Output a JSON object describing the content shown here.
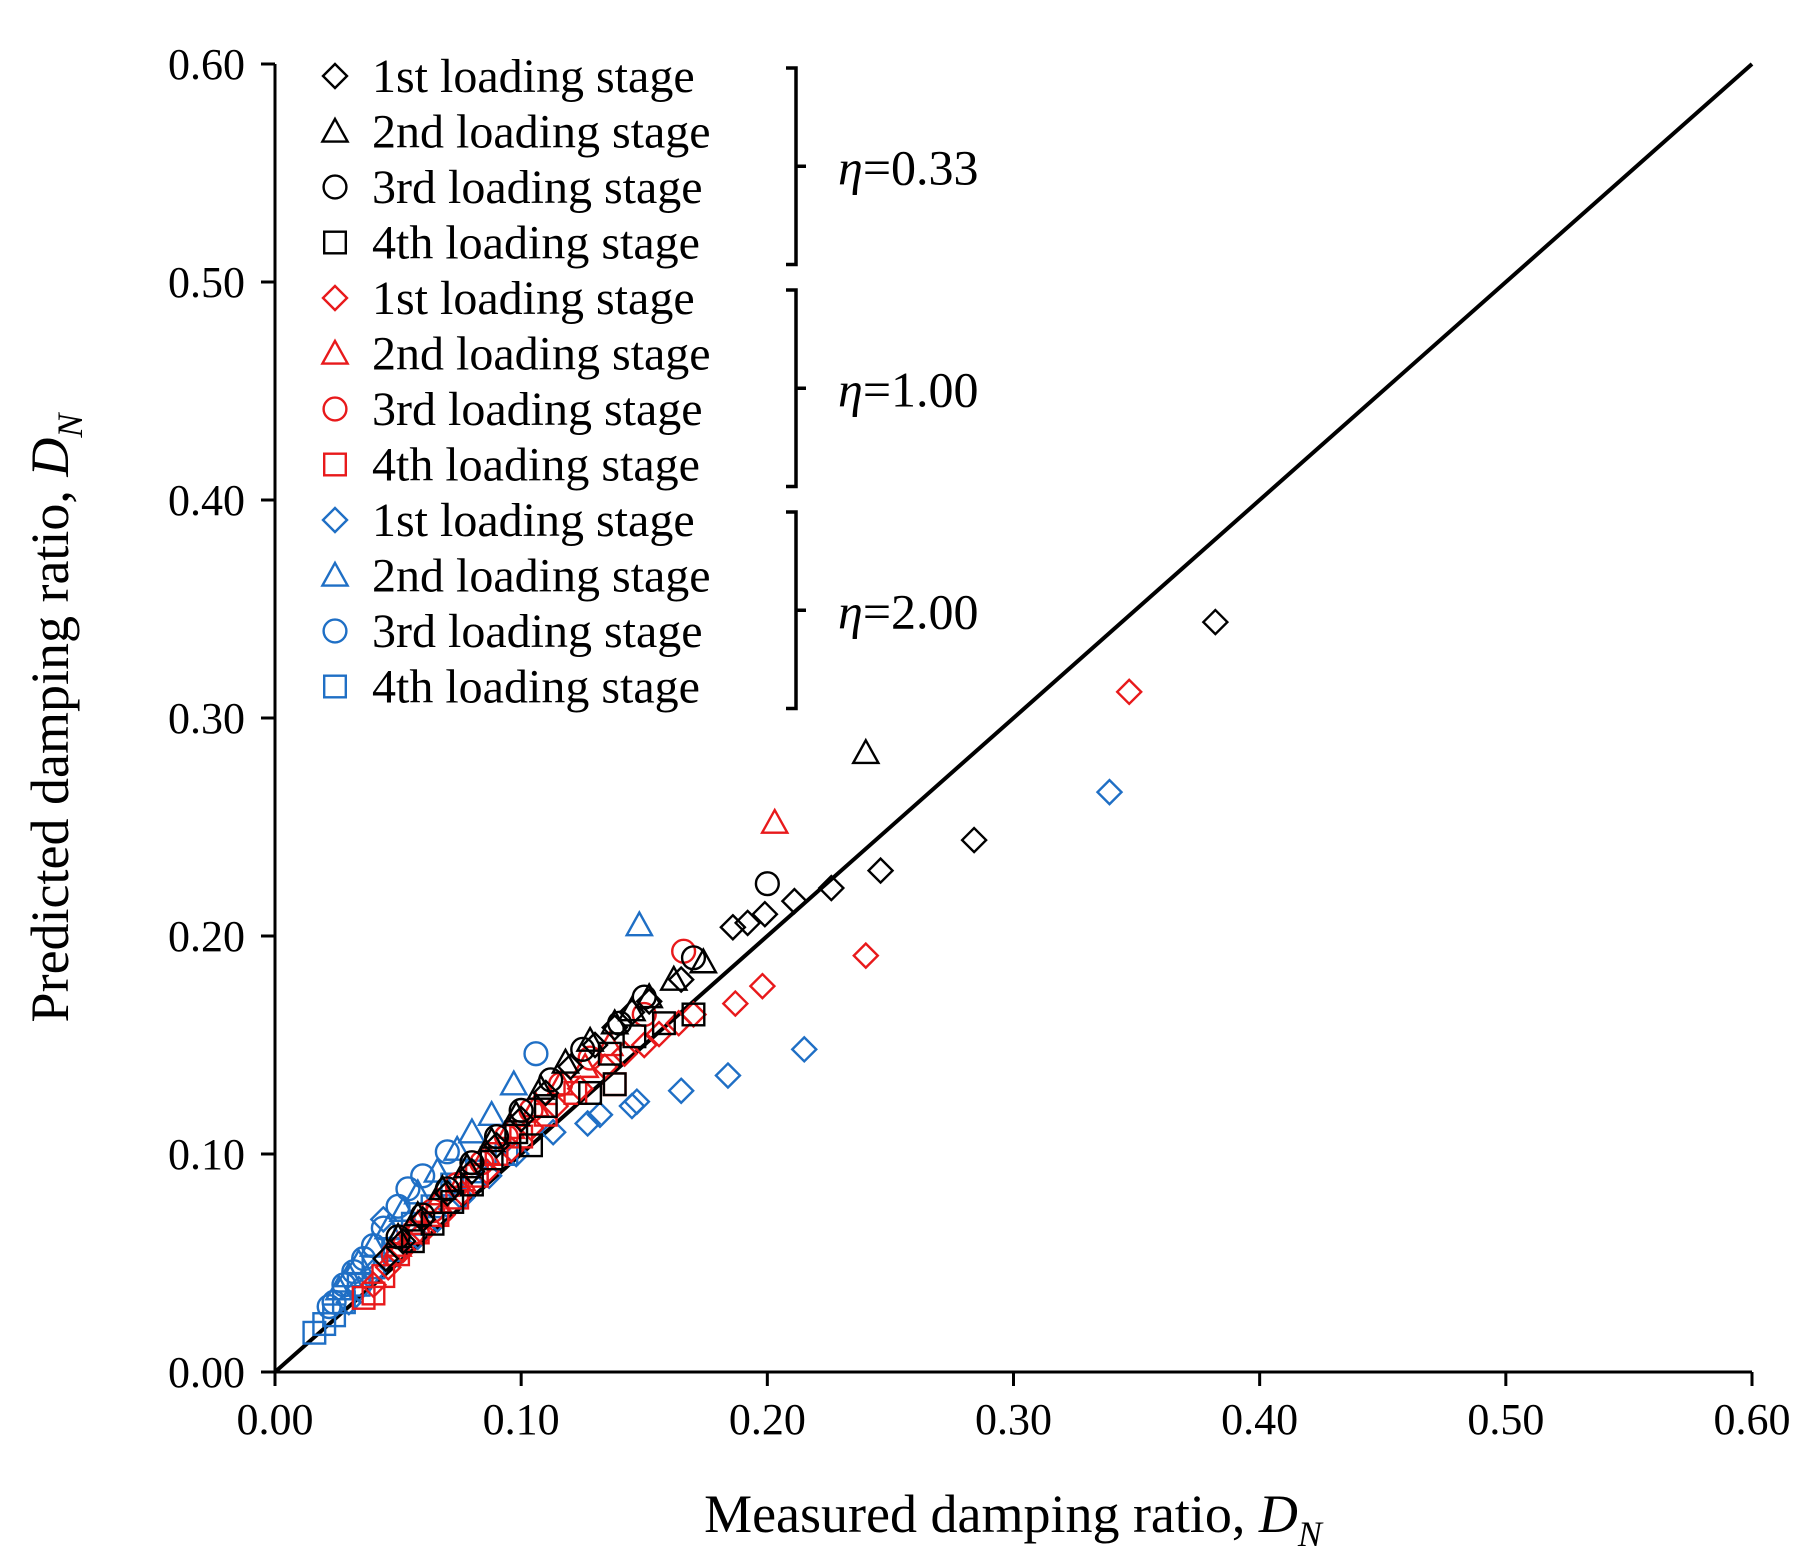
{
  "chart_data": {
    "type": "scatter",
    "title": "",
    "xlabel": "Measured damping ratio, ",
    "xlabel_var": "D",
    "xlabel_sub": "N",
    "ylabel": "Predicted damping ratio, ",
    "ylabel_var": "D",
    "ylabel_sub": "N",
    "xlim": [
      0,
      0.6
    ],
    "ylim": [
      0,
      0.6
    ],
    "x_ticks": [
      "0.00",
      "0.10",
      "0.20",
      "0.30",
      "0.40",
      "0.50",
      "0.60"
    ],
    "y_ticks": [
      "0.00",
      "0.10",
      "0.20",
      "0.30",
      "0.40",
      "0.50",
      "0.60"
    ],
    "reference_line": {
      "name": "1:1 line",
      "from": [
        0,
        0
      ],
      "to": [
        0.6,
        0.6
      ],
      "color": "#000000"
    },
    "legend_position": "top-left",
    "groups": [
      {
        "label_var": "η",
        "label_value": "=0.33",
        "color": "#000000"
      },
      {
        "label_var": "η",
        "label_value": "=1.00",
        "color": "#e8191b"
      },
      {
        "label_var": "η",
        "label_value": "=2.00",
        "color": "#1f6fc5"
      }
    ],
    "series": [
      {
        "name": "1st loading stage",
        "group": 0,
        "marker": "diamond",
        "color": "#000000",
        "points": [
          [
            0.382,
            0.344
          ],
          [
            0.284,
            0.244
          ],
          [
            0.246,
            0.23
          ],
          [
            0.226,
            0.222
          ],
          [
            0.211,
            0.216
          ],
          [
            0.199,
            0.21
          ],
          [
            0.192,
            0.206
          ],
          [
            0.186,
            0.204
          ],
          [
            0.165,
            0.18
          ],
          [
            0.152,
            0.17
          ],
          [
            0.145,
            0.165
          ],
          [
            0.138,
            0.158
          ],
          [
            0.13,
            0.15
          ],
          [
            0.12,
            0.14
          ],
          [
            0.11,
            0.128
          ],
          [
            0.1,
            0.116
          ],
          [
            0.09,
            0.104
          ],
          [
            0.08,
            0.092
          ],
          [
            0.07,
            0.082
          ],
          [
            0.06,
            0.07
          ],
          [
            0.052,
            0.06
          ],
          [
            0.045,
            0.052
          ]
        ]
      },
      {
        "name": "2nd loading stage",
        "group": 0,
        "marker": "triangle",
        "color": "#000000",
        "points": [
          [
            0.24,
            0.284
          ],
          [
            0.174,
            0.188
          ],
          [
            0.162,
            0.18
          ],
          [
            0.152,
            0.172
          ],
          [
            0.145,
            0.166
          ],
          [
            0.138,
            0.16
          ],
          [
            0.128,
            0.152
          ],
          [
            0.118,
            0.142
          ],
          [
            0.108,
            0.13
          ],
          [
            0.098,
            0.118
          ],
          [
            0.088,
            0.106
          ],
          [
            0.078,
            0.094
          ],
          [
            0.068,
            0.084
          ],
          [
            0.058,
            0.072
          ],
          [
            0.05,
            0.062
          ]
        ]
      },
      {
        "name": "3rd loading stage",
        "group": 0,
        "marker": "circle",
        "color": "#000000",
        "points": [
          [
            0.2,
            0.224
          ],
          [
            0.17,
            0.19
          ],
          [
            0.15,
            0.172
          ],
          [
            0.14,
            0.16
          ],
          [
            0.125,
            0.148
          ],
          [
            0.112,
            0.134
          ],
          [
            0.1,
            0.12
          ],
          [
            0.09,
            0.108
          ],
          [
            0.08,
            0.096
          ],
          [
            0.07,
            0.084
          ],
          [
            0.06,
            0.072
          ],
          [
            0.05,
            0.062
          ]
        ]
      },
      {
        "name": "4th loading stage",
        "group": 0,
        "marker": "square",
        "color": "#000000",
        "points": [
          [
            0.17,
            0.164
          ],
          [
            0.158,
            0.16
          ],
          [
            0.146,
            0.154
          ],
          [
            0.136,
            0.146
          ],
          [
            0.138,
            0.132
          ],
          [
            0.128,
            0.128
          ],
          [
            0.11,
            0.122
          ],
          [
            0.098,
            0.11
          ],
          [
            0.104,
            0.104
          ],
          [
            0.088,
            0.098
          ],
          [
            0.08,
            0.086
          ],
          [
            0.072,
            0.078
          ],
          [
            0.064,
            0.068
          ],
          [
            0.056,
            0.06
          ]
        ]
      },
      {
        "name": "1st loading stage",
        "group": 1,
        "marker": "diamond",
        "color": "#e8191b",
        "points": [
          [
            0.347,
            0.312
          ],
          [
            0.24,
            0.191
          ],
          [
            0.198,
            0.177
          ],
          [
            0.187,
            0.169
          ],
          [
            0.17,
            0.164
          ],
          [
            0.164,
            0.16
          ],
          [
            0.156,
            0.155
          ],
          [
            0.15,
            0.15
          ],
          [
            0.142,
            0.146
          ],
          [
            0.134,
            0.14
          ],
          [
            0.124,
            0.13
          ],
          [
            0.114,
            0.122
          ],
          [
            0.104,
            0.112
          ],
          [
            0.096,
            0.102
          ],
          [
            0.086,
            0.092
          ],
          [
            0.076,
            0.082
          ],
          [
            0.068,
            0.072
          ],
          [
            0.06,
            0.064
          ],
          [
            0.052,
            0.056
          ],
          [
            0.046,
            0.048
          ],
          [
            0.04,
            0.04
          ]
        ]
      },
      {
        "name": "2nd loading stage",
        "group": 1,
        "marker": "triangle",
        "color": "#e8191b",
        "points": [
          [
            0.203,
            0.252
          ],
          [
            0.136,
            0.15
          ],
          [
            0.126,
            0.14
          ],
          [
            0.116,
            0.132
          ],
          [
            0.106,
            0.122
          ],
          [
            0.096,
            0.112
          ],
          [
            0.086,
            0.1
          ],
          [
            0.076,
            0.088
          ],
          [
            0.066,
            0.078
          ],
          [
            0.058,
            0.068
          ],
          [
            0.05,
            0.058
          ]
        ]
      },
      {
        "name": "3rd loading stage",
        "group": 1,
        "marker": "circle",
        "color": "#e8191b",
        "points": [
          [
            0.166,
            0.193
          ],
          [
            0.15,
            0.164
          ],
          [
            0.128,
            0.144
          ],
          [
            0.116,
            0.132
          ],
          [
            0.104,
            0.12
          ],
          [
            0.094,
            0.108
          ],
          [
            0.084,
            0.096
          ],
          [
            0.074,
            0.086
          ],
          [
            0.064,
            0.074
          ],
          [
            0.056,
            0.064
          ],
          [
            0.048,
            0.054
          ]
        ]
      },
      {
        "name": "4th loading stage",
        "group": 1,
        "marker": "square",
        "color": "#e8191b",
        "points": [
          [
            0.138,
            0.132
          ],
          [
            0.122,
            0.128
          ],
          [
            0.11,
            0.118
          ],
          [
            0.1,
            0.108
          ],
          [
            0.09,
            0.1
          ],
          [
            0.082,
            0.09
          ],
          [
            0.074,
            0.08
          ],
          [
            0.066,
            0.072
          ],
          [
            0.058,
            0.064
          ],
          [
            0.05,
            0.054
          ],
          [
            0.044,
            0.044
          ],
          [
            0.04,
            0.036
          ],
          [
            0.036,
            0.034
          ]
        ]
      },
      {
        "name": "1st loading stage",
        "group": 2,
        "marker": "diamond",
        "color": "#1f6fc5",
        "points": [
          [
            0.339,
            0.266
          ],
          [
            0.215,
            0.148
          ],
          [
            0.184,
            0.136
          ],
          [
            0.165,
            0.129
          ],
          [
            0.147,
            0.124
          ],
          [
            0.145,
            0.122
          ],
          [
            0.132,
            0.118
          ],
          [
            0.127,
            0.114
          ],
          [
            0.113,
            0.11
          ],
          [
            0.098,
            0.1
          ],
          [
            0.087,
            0.09
          ],
          [
            0.076,
            0.08
          ],
          [
            0.066,
            0.07
          ],
          [
            0.058,
            0.062
          ],
          [
            0.05,
            0.054
          ],
          [
            0.044,
            0.07
          ],
          [
            0.04,
            0.046
          ],
          [
            0.034,
            0.038
          ],
          [
            0.03,
            0.032
          ]
        ]
      },
      {
        "name": "2nd loading stage",
        "group": 2,
        "marker": "triangle",
        "color": "#1f6fc5",
        "points": [
          [
            0.148,
            0.205
          ],
          [
            0.097,
            0.132
          ],
          [
            0.088,
            0.118
          ],
          [
            0.08,
            0.11
          ],
          [
            0.074,
            0.102
          ],
          [
            0.066,
            0.092
          ],
          [
            0.058,
            0.082
          ],
          [
            0.052,
            0.074
          ],
          [
            0.046,
            0.066
          ],
          [
            0.04,
            0.058
          ],
          [
            0.034,
            0.05
          ],
          [
            0.03,
            0.044
          ],
          [
            0.026,
            0.038
          ]
        ]
      },
      {
        "name": "3rd loading stage",
        "group": 2,
        "marker": "circle",
        "color": "#1f6fc5",
        "points": [
          [
            0.106,
            0.146
          ],
          [
            0.07,
            0.101
          ],
          [
            0.06,
            0.09
          ],
          [
            0.054,
            0.084
          ],
          [
            0.05,
            0.076
          ],
          [
            0.044,
            0.066
          ],
          [
            0.04,
            0.058
          ],
          [
            0.036,
            0.052
          ],
          [
            0.032,
            0.046
          ],
          [
            0.028,
            0.04
          ],
          [
            0.024,
            0.032
          ],
          [
            0.022,
            0.03
          ]
        ]
      },
      {
        "name": "4th loading stage",
        "group": 2,
        "marker": "square",
        "color": "#1f6fc5",
        "points": [
          [
            0.094,
            0.1
          ],
          [
            0.082,
            0.092
          ],
          [
            0.072,
            0.086
          ],
          [
            0.064,
            0.076
          ],
          [
            0.056,
            0.068
          ],
          [
            0.048,
            0.056
          ],
          [
            0.04,
            0.048
          ],
          [
            0.034,
            0.04
          ],
          [
            0.028,
            0.032
          ],
          [
            0.024,
            0.026
          ],
          [
            0.02,
            0.022
          ],
          [
            0.016,
            0.018
          ]
        ]
      }
    ]
  }
}
